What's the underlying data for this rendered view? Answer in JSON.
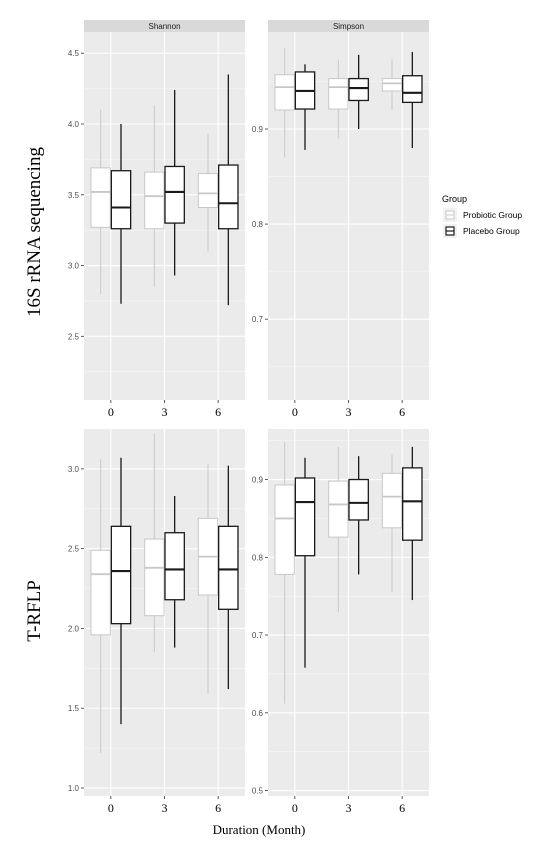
{
  "x_axis_title": "Duration (Month)",
  "legend": {
    "title": "Group",
    "items": [
      {
        "name": "Probiotic Group",
        "color": "#c8c8c8"
      },
      {
        "name": "Placebo Group",
        "color": "#1a1a1a"
      }
    ]
  },
  "row_labels": [
    "16S rRNA sequencing",
    "T-RFLP"
  ],
  "chart_data": [
    {
      "type": "boxplot",
      "row": "16S rRNA sequencing",
      "facet": "Shannon",
      "categories": [
        "0",
        "3",
        "6"
      ],
      "ylim": [
        2.05,
        4.65
      ],
      "yticks": [
        "2.5",
        "3.0",
        "3.5",
        "4.0",
        "4.5"
      ],
      "series": [
        {
          "name": "Probiotic Group",
          "boxes": [
            {
              "min": 2.8,
              "q1": 3.27,
              "median": 3.52,
              "q3": 3.69,
              "max": 4.1
            },
            {
              "min": 2.85,
              "q1": 3.26,
              "median": 3.49,
              "q3": 3.66,
              "max": 4.13
            },
            {
              "min": 3.1,
              "q1": 3.41,
              "median": 3.51,
              "q3": 3.65,
              "max": 3.93
            }
          ]
        },
        {
          "name": "Placebo Group",
          "boxes": [
            {
              "min": 2.73,
              "q1": 3.26,
              "median": 3.41,
              "q3": 3.67,
              "max": 4.0
            },
            {
              "min": 2.93,
              "q1": 3.3,
              "median": 3.52,
              "q3": 3.7,
              "max": 4.24
            },
            {
              "min": 2.72,
              "q1": 3.26,
              "median": 3.44,
              "q3": 3.71,
              "max": 4.35
            }
          ]
        }
      ]
    },
    {
      "type": "boxplot",
      "row": "16S rRNA sequencing",
      "facet": "Simpson",
      "categories": [
        "0",
        "3",
        "6"
      ],
      "ylim": [
        0.615,
        1.002
      ],
      "yticks": [
        "0.7",
        "0.8",
        "0.9"
      ],
      "series": [
        {
          "name": "Probiotic Group",
          "boxes": [
            {
              "min": 0.87,
              "q1": 0.92,
              "median": 0.944,
              "q3": 0.957,
              "max": 0.985
            },
            {
              "min": 0.89,
              "q1": 0.921,
              "median": 0.944,
              "q3": 0.953,
              "max": 0.973
            },
            {
              "min": 0.92,
              "q1": 0.94,
              "median": 0.948,
              "q3": 0.953,
              "max": 0.973
            }
          ]
        },
        {
          "name": "Placebo Group",
          "boxes": [
            {
              "min": 0.878,
              "q1": 0.921,
              "median": 0.94,
              "q3": 0.96,
              "max": 0.968
            },
            {
              "min": 0.9,
              "q1": 0.93,
              "median": 0.943,
              "q3": 0.953,
              "max": 0.978
            },
            {
              "min": 0.88,
              "q1": 0.928,
              "median": 0.938,
              "q3": 0.956,
              "max": 0.981
            }
          ]
        }
      ]
    },
    {
      "type": "boxplot",
      "row": "T-RFLP",
      "facet": "",
      "categories": [
        "0",
        "3",
        "6"
      ],
      "ylim": [
        0.95,
        3.25
      ],
      "yticks": [
        "1.0",
        "1.5",
        "2.0",
        "2.5",
        "3.0"
      ],
      "series": [
        {
          "name": "Probiotic Group",
          "boxes": [
            {
              "min": 1.22,
              "q1": 1.96,
              "median": 2.34,
              "q3": 2.49,
              "max": 3.06
            },
            {
              "min": 1.85,
              "q1": 2.08,
              "median": 2.38,
              "q3": 2.56,
              "max": 3.22
            },
            {
              "min": 1.59,
              "q1": 2.21,
              "median": 2.45,
              "q3": 2.69,
              "max": 3.03
            }
          ]
        },
        {
          "name": "Placebo Group",
          "boxes": [
            {
              "min": 1.4,
              "q1": 2.03,
              "median": 2.36,
              "q3": 2.64,
              "max": 3.07
            },
            {
              "min": 1.88,
              "q1": 2.18,
              "median": 2.37,
              "q3": 2.6,
              "max": 2.83
            },
            {
              "min": 1.62,
              "q1": 2.12,
              "median": 2.37,
              "q3": 2.64,
              "max": 3.02
            }
          ]
        }
      ]
    },
    {
      "type": "boxplot",
      "row": "T-RFLP",
      "facet": "",
      "categories": [
        "0",
        "3",
        "6"
      ],
      "ylim": [
        0.493,
        0.965
      ],
      "yticks": [
        "0.5",
        "0.6",
        "0.7",
        "0.8",
        "0.9"
      ],
      "series": [
        {
          "name": "Probiotic Group",
          "boxes": [
            {
              "min": 0.612,
              "q1": 0.778,
              "median": 0.85,
              "q3": 0.893,
              "max": 0.948
            },
            {
              "min": 0.73,
              "q1": 0.826,
              "median": 0.868,
              "q3": 0.898,
              "max": 0.942
            },
            {
              "min": 0.755,
              "q1": 0.838,
              "median": 0.878,
              "q3": 0.908,
              "max": 0.932
            }
          ]
        },
        {
          "name": "Placebo Group",
          "boxes": [
            {
              "min": 0.658,
              "q1": 0.802,
              "median": 0.871,
              "q3": 0.902,
              "max": 0.928
            },
            {
              "min": 0.778,
              "q1": 0.848,
              "median": 0.87,
              "q3": 0.9,
              "max": 0.93
            },
            {
              "min": 0.745,
              "q1": 0.822,
              "median": 0.872,
              "q3": 0.915,
              "max": 0.942
            }
          ]
        }
      ]
    }
  ]
}
